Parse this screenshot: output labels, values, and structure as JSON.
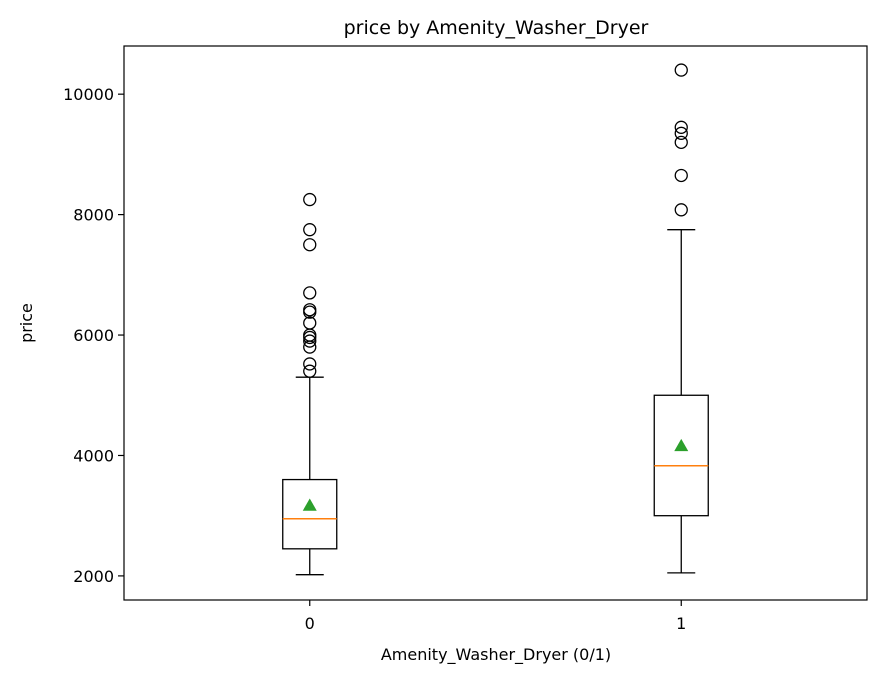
{
  "chart_data": {
    "type": "box",
    "title": "price by Amenity_Washer_Dryer",
    "xlabel": "Amenity_Washer_Dryer (0/1)",
    "ylabel": "price",
    "categories": [
      "0",
      "1"
    ],
    "ylim": [
      1600,
      10800
    ],
    "yticks": [
      2000,
      4000,
      6000,
      8000,
      10000
    ],
    "grid": false,
    "legend": "none",
    "boxes": [
      {
        "category": "0",
        "whisker_low": 2020,
        "q1": 2450,
        "median": 2950,
        "q3": 3600,
        "whisker_high": 5300,
        "mean": 3170,
        "outliers": [
          5400,
          5520,
          5800,
          5900,
          5960,
          6000,
          6200,
          6380,
          6420,
          6700,
          7500,
          7750,
          8250
        ]
      },
      {
        "category": "1",
        "whisker_low": 2050,
        "q1": 3000,
        "median": 3830,
        "q3": 5000,
        "whisker_high": 7750,
        "mean": 4160,
        "outliers": [
          8080,
          8650,
          9200,
          9350,
          9450,
          10400
        ]
      }
    ],
    "colors": {
      "box": "#000000",
      "median": "#ff7f0e",
      "mean": "#2ca02c",
      "outlier": "#000000"
    }
  }
}
